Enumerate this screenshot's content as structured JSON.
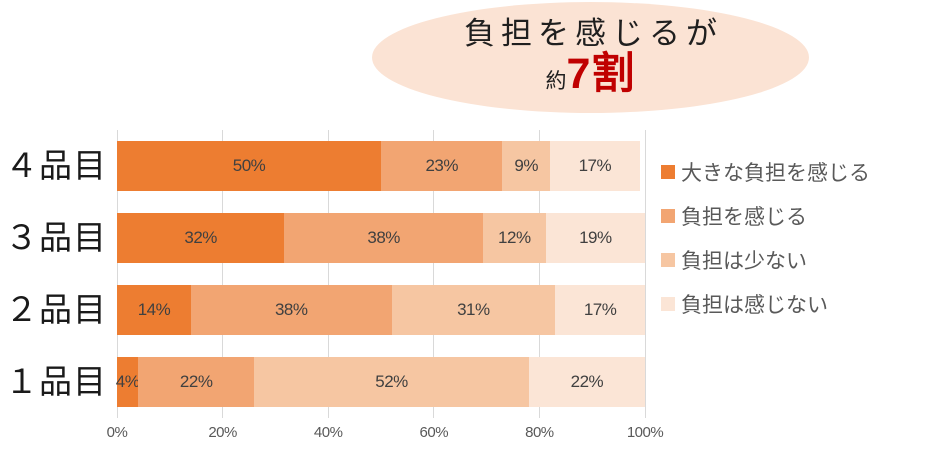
{
  "callout": {
    "line1": "負担を感じるが",
    "approx": "約",
    "highlight": "7割",
    "bg_color": "#fbe3d4",
    "text_color": "#1f1f1f",
    "highlight_color": "#c00000"
  },
  "chart_data": {
    "type": "bar",
    "orientation": "horizontal",
    "stacked": true,
    "categories": [
      "４品目",
      "３品目",
      "２品目",
      "１品目"
    ],
    "series": [
      {
        "name": "大きな負担を感じる",
        "color": "#ed7d31",
        "values": [
          50,
          32,
          14,
          4
        ]
      },
      {
        "name": "負担を感じる",
        "color": "#f2a572",
        "values": [
          23,
          38,
          38,
          22
        ]
      },
      {
        "name": "負担は少ない",
        "color": "#f6c6a2",
        "values": [
          9,
          12,
          31,
          52
        ]
      },
      {
        "name": "負担は感じない",
        "color": "#fbe5d6",
        "values": [
          17,
          19,
          17,
          22
        ]
      }
    ],
    "data_label_suffix": "%",
    "x_ticks": [
      "0%",
      "20%",
      "40%",
      "60%",
      "80%",
      "100%"
    ],
    "xlim": [
      0,
      100
    ],
    "grid": true,
    "legend_position": "right",
    "colors": {
      "gridline": "#d9d9d9",
      "data_label": "#404040",
      "category_label": "#1a1a1a",
      "axis_label": "#595959",
      "legend_label": "#595959"
    }
  }
}
